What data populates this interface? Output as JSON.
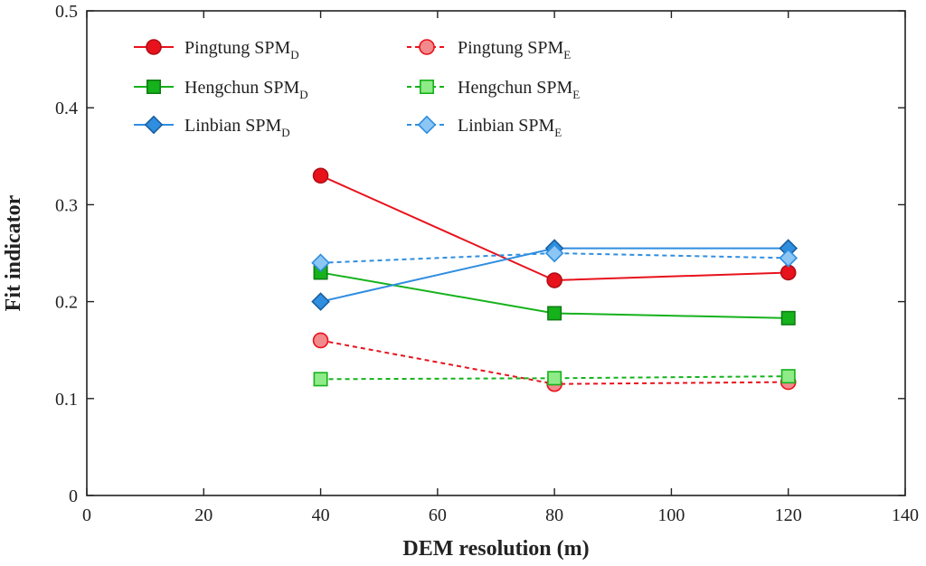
{
  "chart_data": {
    "type": "line",
    "title": "",
    "xlabel": "DEM resolution (m)",
    "ylabel": "Fit indicator",
    "xlim": [
      0,
      140
    ],
    "ylim": [
      0,
      0.5
    ],
    "xticks": [
      0,
      20,
      40,
      60,
      80,
      100,
      120,
      140
    ],
    "yticks": [
      0,
      0.1,
      0.2,
      0.3,
      0.4,
      0.5
    ],
    "xtick_labels": [
      "0",
      "20",
      "40",
      "60",
      "80",
      "100",
      "120",
      "140"
    ],
    "ytick_labels": [
      "0",
      "0.1",
      "0.2",
      "0.3",
      "0.4",
      "0.5"
    ],
    "grid": false,
    "legend_position": "top-left",
    "x": [
      40,
      80,
      120
    ],
    "series": [
      {
        "name": "Pingtung SPM",
        "base": "Pingtung SPM",
        "sub": "D",
        "values": [
          0.33,
          0.222,
          0.23
        ],
        "color": "#e8121c",
        "fill": "#e8121c",
        "marker": "circle",
        "dash": "solid"
      },
      {
        "name": "Pingtung SPM",
        "base": "Pingtung SPM",
        "sub": "E",
        "values": [
          0.16,
          0.115,
          0.117
        ],
        "color": "#e8121c",
        "fill": "#f28a8c",
        "marker": "circle",
        "dash": "dashed"
      },
      {
        "name": "Hengchun SPM",
        "base": "Hengchun SPM",
        "sub": "D",
        "values": [
          0.23,
          0.188,
          0.183
        ],
        "color": "#16b21c",
        "fill": "#16b21c",
        "marker": "square",
        "dash": "solid"
      },
      {
        "name": "Hengchun SPM",
        "base": "Hengchun SPM",
        "sub": "E",
        "values": [
          0.12,
          0.121,
          0.123
        ],
        "color": "#16b21c",
        "fill": "#8fea88",
        "marker": "square",
        "dash": "dashed"
      },
      {
        "name": "Linbian SPM",
        "base": "Linbian SPM",
        "sub": "D",
        "values": [
          0.2,
          0.255,
          0.255
        ],
        "color": "#2f8ee0",
        "fill": "#2f8ee0",
        "marker": "diamond",
        "dash": "solid"
      },
      {
        "name": "Linbian SPM",
        "base": "Linbian SPM",
        "sub": "E",
        "values": [
          0.24,
          0.25,
          0.245
        ],
        "color": "#2f8ee0",
        "fill": "#8cc6f4",
        "marker": "diamond",
        "dash": "dashed"
      }
    ],
    "legend_order": [
      0,
      1,
      2,
      3,
      4,
      5
    ]
  }
}
